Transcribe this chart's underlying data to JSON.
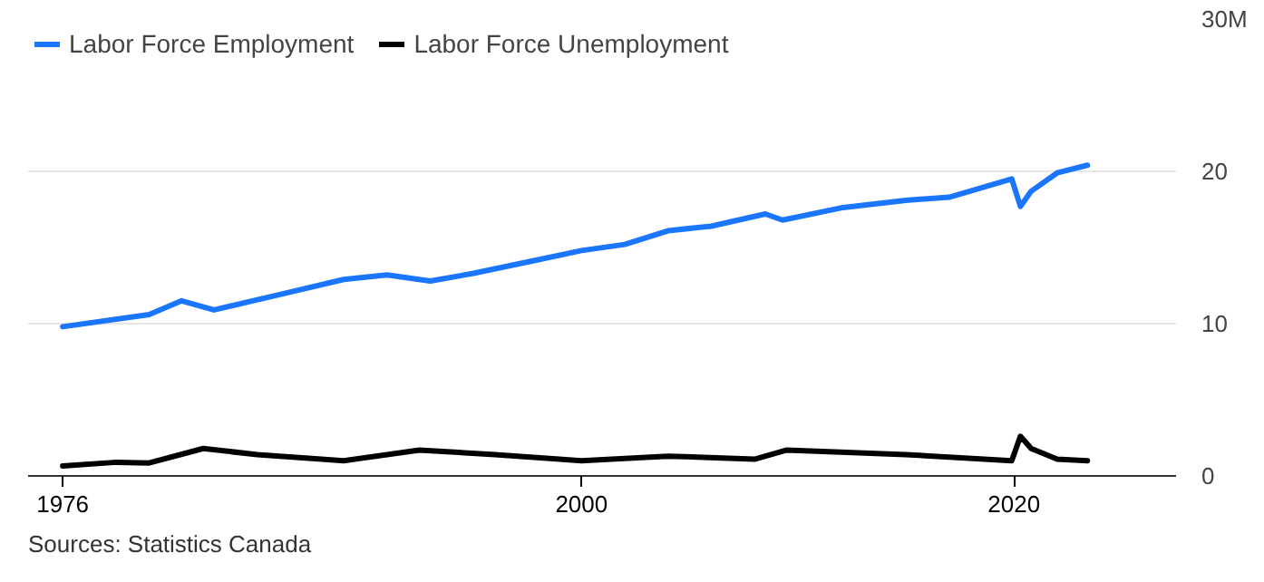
{
  "chart_data": {
    "type": "line",
    "xlim": [
      1974.4,
      2027.5
    ],
    "xticks": [
      1976,
      2000,
      2020
    ],
    "ylim": [
      0,
      30
    ],
    "yticks": [
      0,
      10,
      20,
      {
        "value": 30,
        "label": "30M"
      }
    ],
    "grid": "y",
    "legend": "top left",
    "annotations": [
      "Sources: Statistics Canada"
    ],
    "series": [
      {
        "name": "Labor Force Employment",
        "color": "#1a75ff",
        "x": [
          1976,
          1980,
          1981.5,
          1983,
          1986,
          1989,
          1991,
          1993,
          1995,
          1998,
          2000,
          2002,
          2004,
          2006,
          2008.5,
          2009.3,
          2012,
          2015,
          2017,
          2019.9,
          2020.3,
          2020.8,
          2022,
          2023.4
        ],
        "values": [
          9.8,
          10.6,
          11.5,
          10.9,
          11.9,
          12.9,
          13.2,
          12.8,
          13.3,
          14.2,
          14.8,
          15.2,
          16.1,
          16.4,
          17.2,
          16.8,
          17.6,
          18.1,
          18.3,
          19.5,
          17.7,
          18.7,
          19.9,
          20.4
        ]
      },
      {
        "name": "Labor Force Unemployment",
        "color": "#000000",
        "x": [
          1976,
          1978.5,
          1980,
          1982.5,
          1985,
          1989,
          1992.5,
          1996,
          2000,
          2004,
          2008,
          2009.5,
          2015,
          2019.9,
          2020.3,
          2020.8,
          2022,
          2023.4
        ],
        "values": [
          0.65,
          0.9,
          0.85,
          1.8,
          1.4,
          1.0,
          1.7,
          1.4,
          1.0,
          1.3,
          1.1,
          1.7,
          1.4,
          1.0,
          2.6,
          1.8,
          1.1,
          1.0
        ]
      }
    ]
  }
}
